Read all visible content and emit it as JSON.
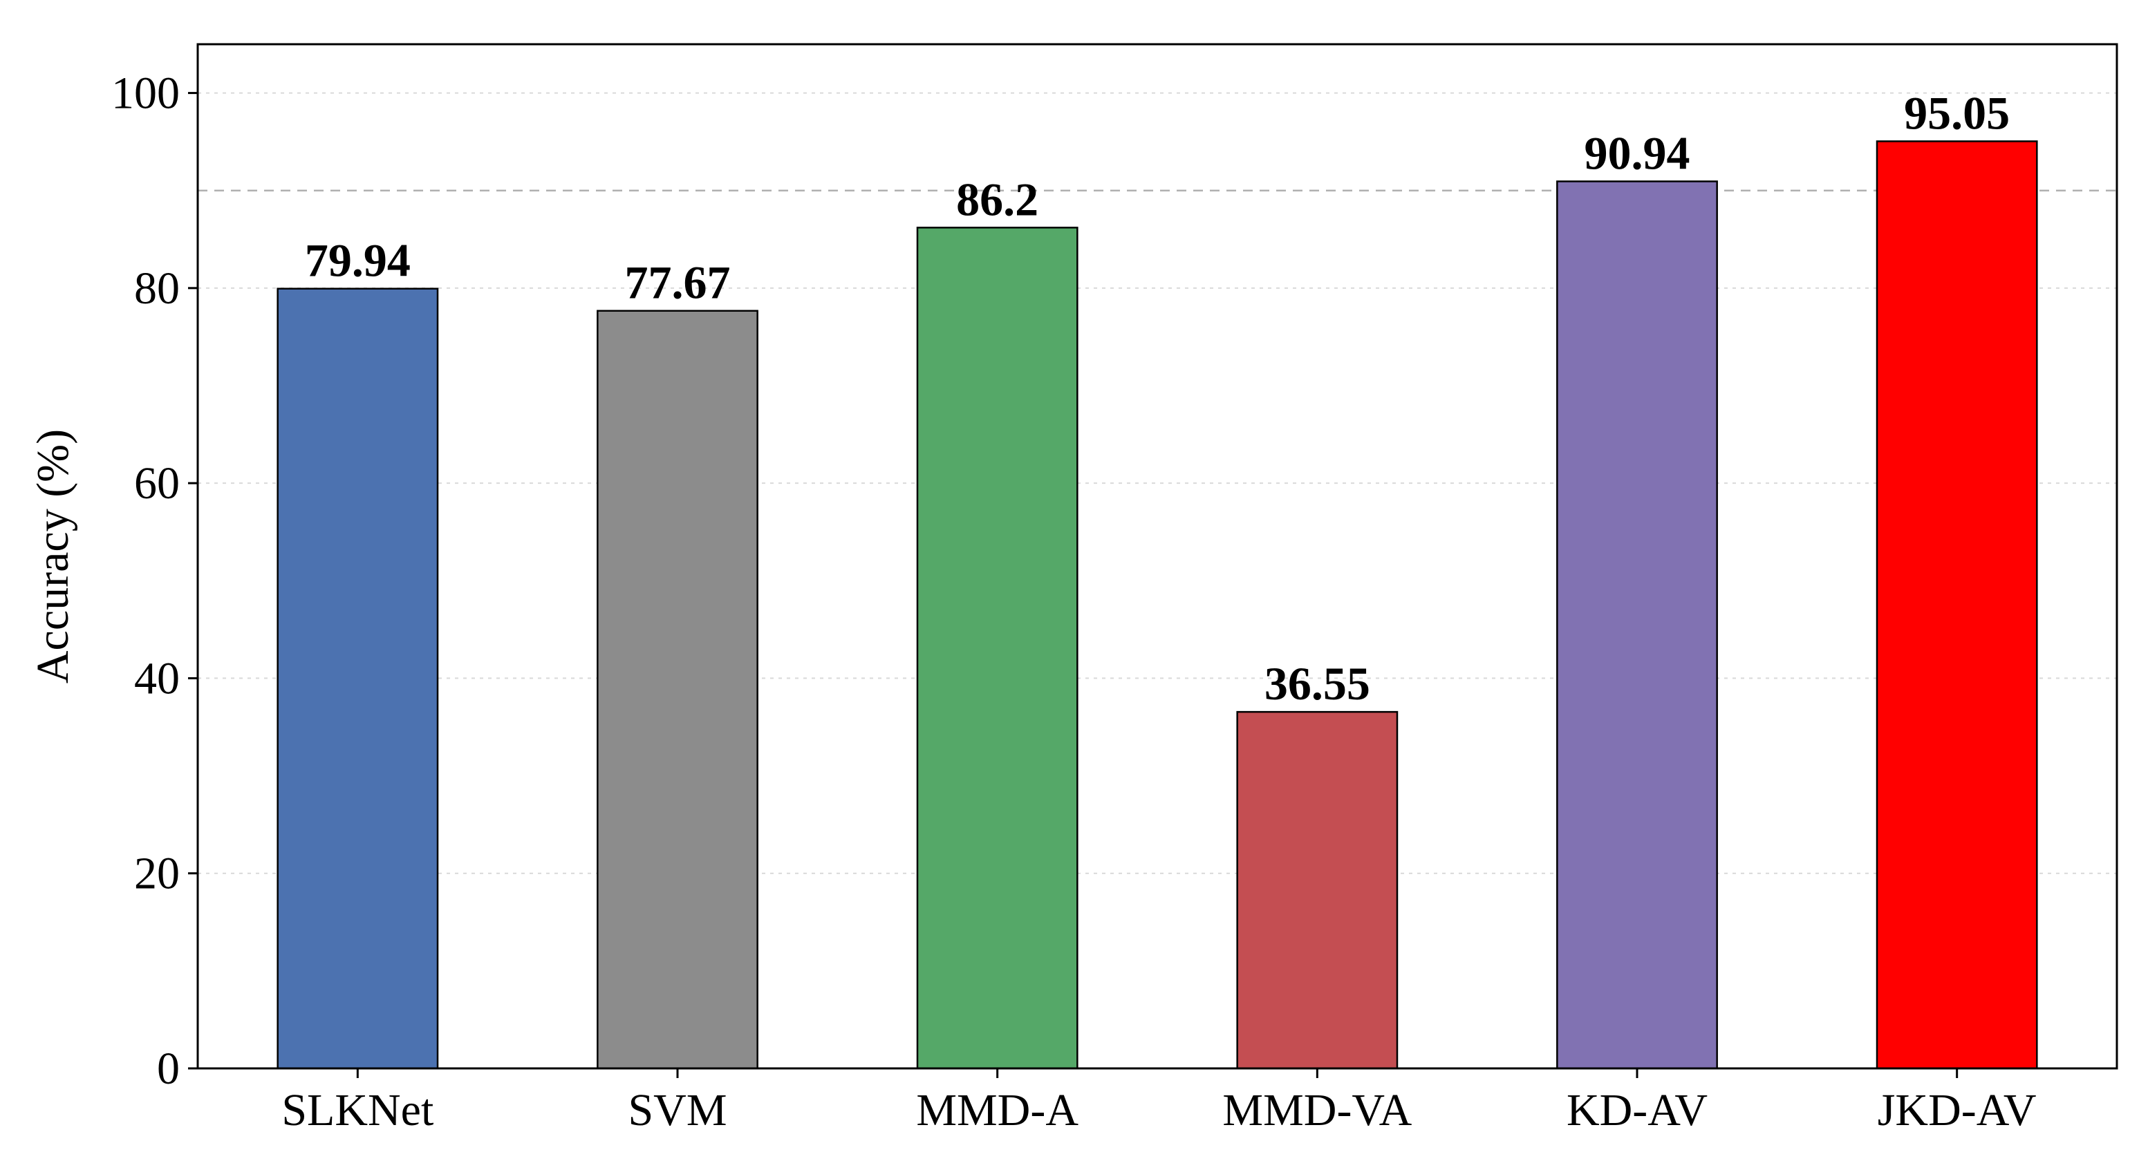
{
  "chart_data": {
    "type": "bar",
    "title": "",
    "xlabel": "",
    "ylabel": "Accuracy (%)",
    "ylim": [
      0,
      105
    ],
    "yticks": [
      0,
      20,
      40,
      60,
      80,
      100
    ],
    "ytick_labels": [
      "0",
      "20",
      "40",
      "60",
      "80",
      "100"
    ],
    "grid": true,
    "reference_line": 90,
    "categories": [
      "SLKNet",
      "SVM",
      "MMD-A",
      "MMD-VA",
      "KD-AV",
      "JKD-AV"
    ],
    "values": [
      79.94,
      77.67,
      86.2,
      36.55,
      90.94,
      95.05
    ],
    "value_labels": [
      "79.94",
      "77.67",
      "86.2",
      "36.55",
      "90.94",
      "95.05"
    ],
    "colors": [
      "#4c72b0",
      "#8c8c8c",
      "#55a868",
      "#c44e52",
      "#8172b2",
      "#ff0000"
    ]
  }
}
